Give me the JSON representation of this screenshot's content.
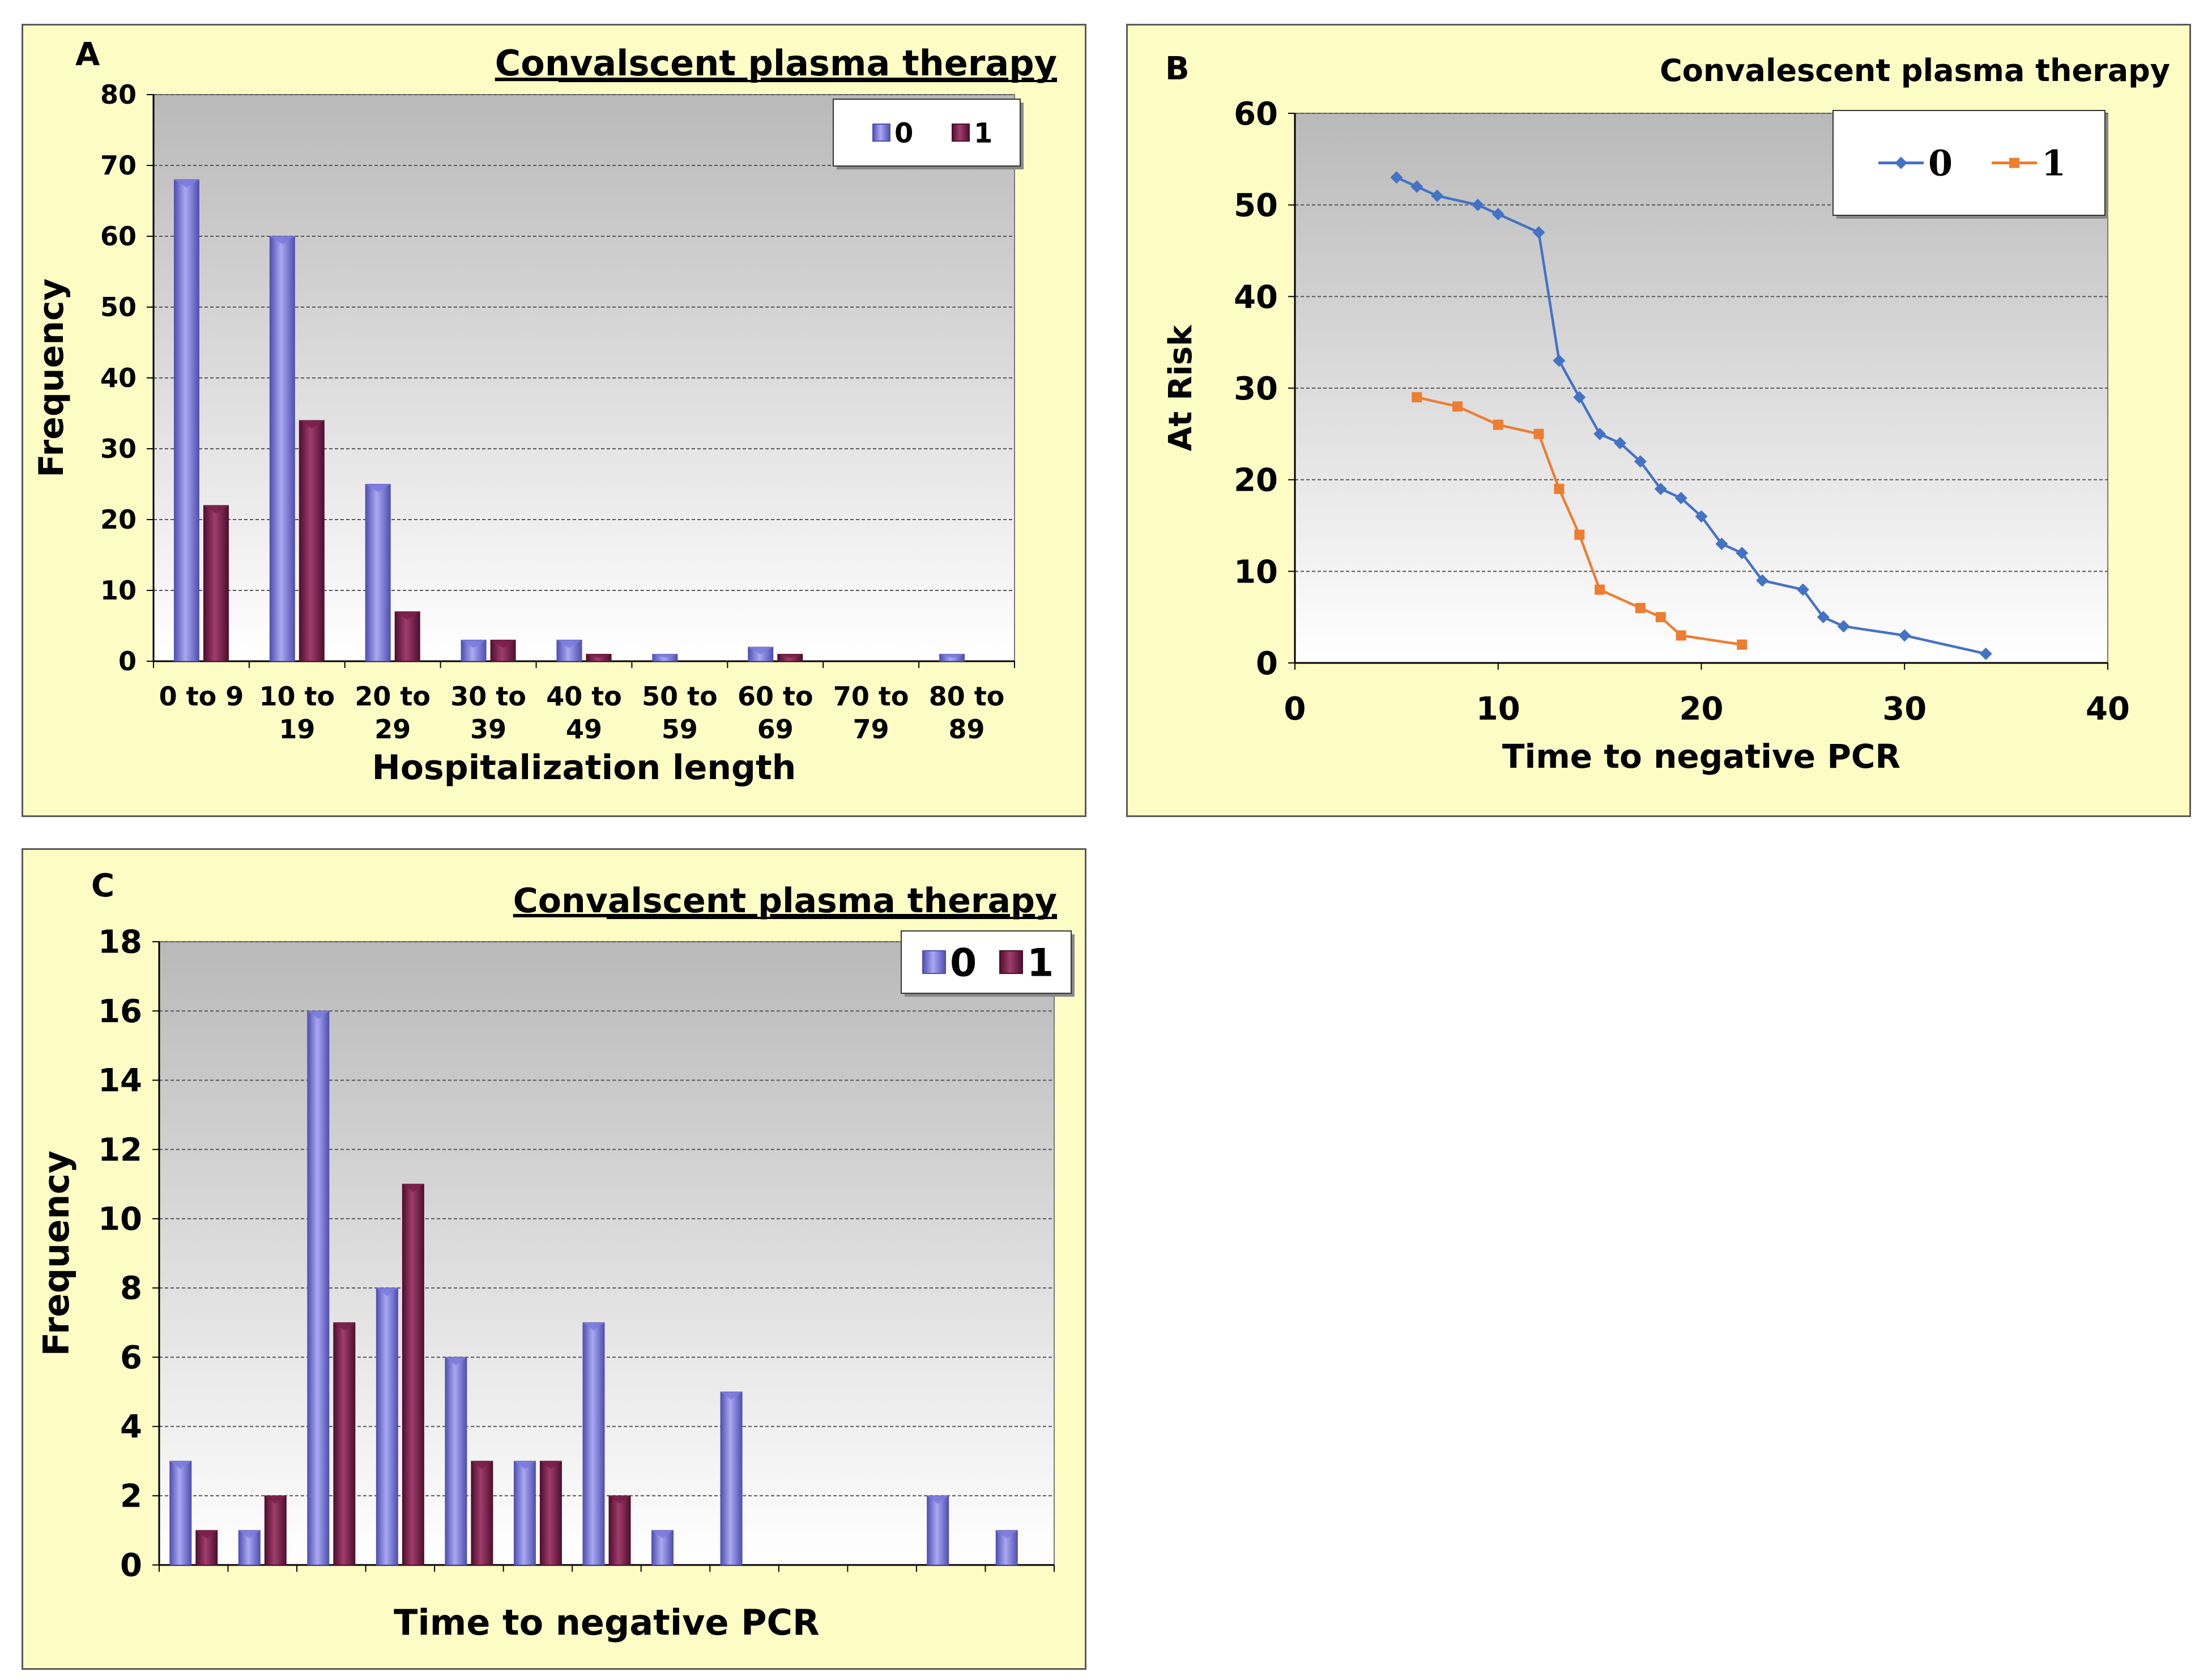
{
  "colors": {
    "series0": "#7b7bdd",
    "series0_dark": "#4f4fb0",
    "series1": "#7a1f4a",
    "series1_dark": "#4e0f2d",
    "line0": "#4472c4",
    "line1": "#ed7d31",
    "panel_bg": "#fcfcc4"
  },
  "chart_data": [
    {
      "id": "A",
      "type": "bar",
      "panel_label": "A",
      "title": "Convalscent plasma therapy",
      "xlabel": "Hospitalization length",
      "ylabel": "Frequency",
      "ylim": [
        0,
        80
      ],
      "yticks": [
        0,
        10,
        20,
        30,
        40,
        50,
        60,
        70,
        80
      ],
      "categories": [
        "0 to 9",
        "10 to 19",
        "20 to 29",
        "30 to 39",
        "40 to 49",
        "50 to 59",
        "60 to 69",
        "70 to 79",
        "80 to 89"
      ],
      "category_lines": [
        [
          "0 to 9",
          ""
        ],
        [
          "10 to",
          "19"
        ],
        [
          "20 to",
          "29"
        ],
        [
          "30 to",
          "39"
        ],
        [
          "40 to",
          "49"
        ],
        [
          "50 to",
          "59"
        ],
        [
          "60 to",
          "69"
        ],
        [
          "70 to",
          "79"
        ],
        [
          "80 to",
          "89"
        ]
      ],
      "series": [
        {
          "name": "0",
          "values": [
            68,
            60,
            25,
            3,
            3,
            1,
            2,
            0,
            1
          ]
        },
        {
          "name": "1",
          "values": [
            22,
            34,
            7,
            3,
            1,
            0,
            1,
            0,
            0
          ]
        }
      ],
      "legend": [
        "0",
        "1"
      ],
      "grid": true
    },
    {
      "id": "B",
      "type": "line",
      "panel_label": "B",
      "title": "Convalescent plasma therapy",
      "xlabel": "Time to negative PCR",
      "ylabel": "At Risk",
      "xlim": [
        0,
        40
      ],
      "ylim": [
        0,
        60
      ],
      "xticks": [
        0,
        10,
        20,
        30,
        40
      ],
      "yticks": [
        0,
        10,
        20,
        30,
        40,
        50,
        60
      ],
      "series": [
        {
          "name": "0",
          "x": [
            5,
            6,
            7,
            9,
            10,
            12,
            13,
            14,
            15,
            16,
            17,
            18,
            19,
            20,
            21,
            22,
            23,
            25,
            26,
            27,
            30,
            34
          ],
          "y": [
            53,
            52,
            51,
            50,
            49,
            47,
            33,
            29,
            25,
            24,
            22,
            19,
            18,
            16,
            13,
            12,
            9,
            8,
            5,
            4,
            3,
            1
          ]
        },
        {
          "name": "1",
          "x": [
            6,
            8,
            10,
            12,
            13,
            14,
            15,
            17,
            18,
            19,
            22
          ],
          "y": [
            29,
            28,
            26,
            25,
            19,
            14,
            8,
            6,
            5,
            3,
            2
          ]
        }
      ],
      "legend": [
        "0",
        "1"
      ],
      "grid": true
    },
    {
      "id": "C",
      "type": "bar",
      "panel_label": "C",
      "title": "Convalscent plasma therapy",
      "xlabel": "Time to negative PCR",
      "ylabel": "Frequency",
      "ylim": [
        0,
        18
      ],
      "yticks": [
        0,
        2,
        4,
        6,
        8,
        10,
        12,
        14,
        16,
        18
      ],
      "categories": [
        "",
        "",
        "",
        "",
        "",
        "",
        "",
        "",
        "",
        "",
        "",
        "",
        ""
      ],
      "series": [
        {
          "name": "0",
          "values": [
            3,
            1,
            16,
            8,
            6,
            3,
            7,
            1,
            5,
            0,
            0,
            2,
            1
          ]
        },
        {
          "name": "1",
          "values": [
            1,
            2,
            7,
            11,
            3,
            3,
            2,
            0,
            0,
            0,
            0,
            0,
            0
          ]
        }
      ],
      "legend": [
        "0",
        "1"
      ],
      "grid": true
    }
  ]
}
